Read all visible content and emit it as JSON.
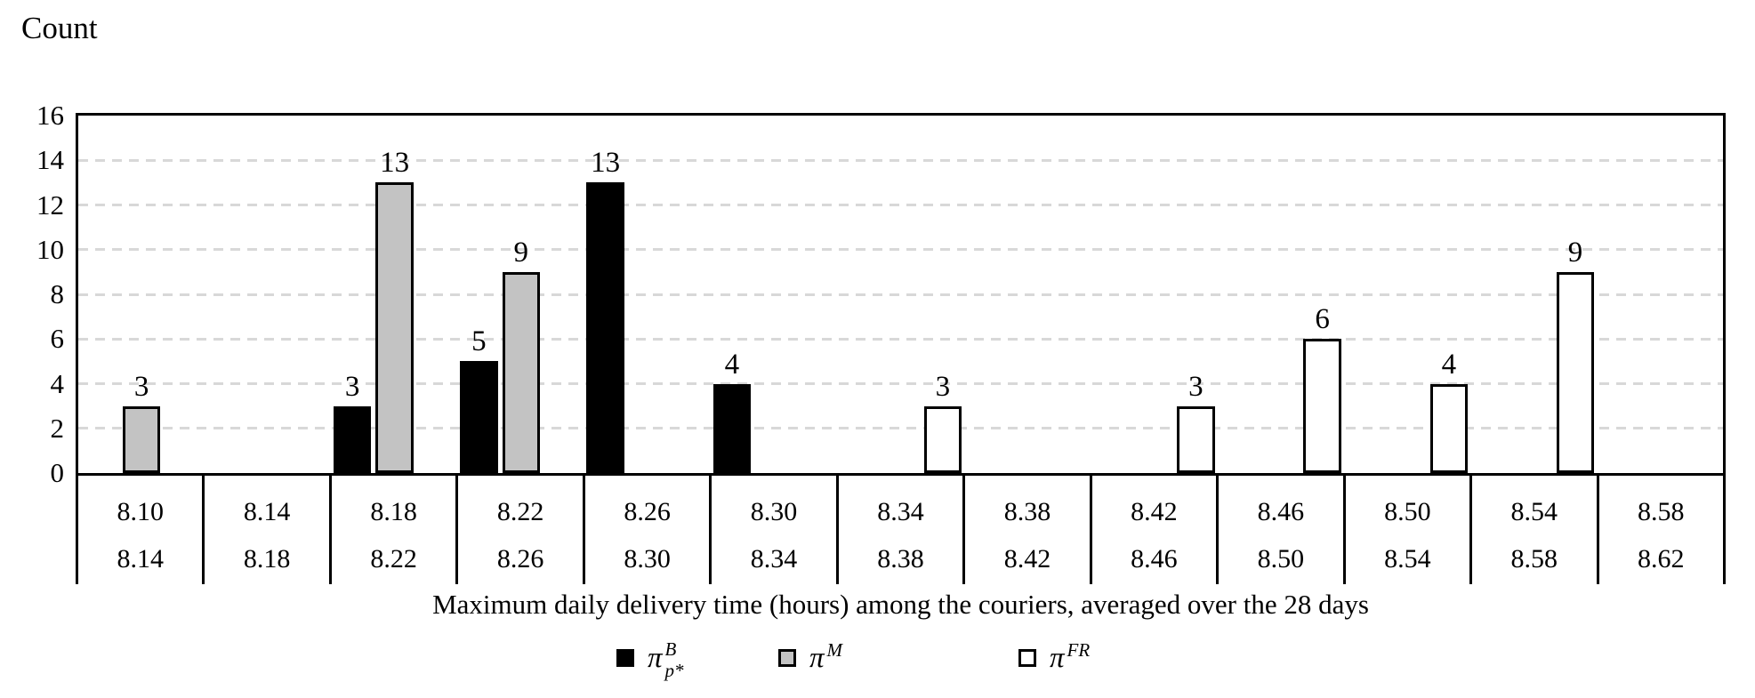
{
  "chart_data": {
    "type": "bar",
    "subtype": "clustered-histogram",
    "y_axis_title": "Count",
    "xlabel": "Maximum daily delivery time (hours) among the couriers, averaged over the 28 days",
    "ylim": [
      0,
      16
    ],
    "ytick_step": 2,
    "yticks": [
      "0",
      "2",
      "4",
      "6",
      "8",
      "10",
      "12",
      "14",
      "16"
    ],
    "grid": "horizontal-dashed-at-even-values",
    "legend_position": "bottom",
    "bins": [
      {
        "lower": "8.10",
        "upper": "8.14"
      },
      {
        "lower": "8.14",
        "upper": "8.18"
      },
      {
        "lower": "8.18",
        "upper": "8.22"
      },
      {
        "lower": "8.22",
        "upper": "8.26"
      },
      {
        "lower": "8.26",
        "upper": "8.30"
      },
      {
        "lower": "8.30",
        "upper": "8.34"
      },
      {
        "lower": "8.34",
        "upper": "8.38"
      },
      {
        "lower": "8.38",
        "upper": "8.42"
      },
      {
        "lower": "8.42",
        "upper": "8.46"
      },
      {
        "lower": "8.46",
        "upper": "8.50"
      },
      {
        "lower": "8.50",
        "upper": "8.54"
      },
      {
        "lower": "8.54",
        "upper": "8.58"
      },
      {
        "lower": "8.58",
        "upper": "8.62"
      }
    ],
    "series": [
      {
        "name": "pi-B-pstar",
        "legend_symbol": "π",
        "legend_sup": "B",
        "legend_sub": "p*",
        "fill": "#000000",
        "values": [
          null,
          null,
          3,
          5,
          13,
          4,
          null,
          null,
          null,
          null,
          null,
          null,
          null
        ]
      },
      {
        "name": "pi-M",
        "legend_symbol": "π",
        "legend_sup": "M",
        "legend_sub": "",
        "fill": "#c3c3c3",
        "values": [
          3,
          null,
          13,
          9,
          null,
          null,
          null,
          null,
          null,
          null,
          null,
          null,
          null
        ]
      },
      {
        "name": "pi-FR",
        "legend_symbol": "π",
        "legend_sup": "FR",
        "legend_sub": "",
        "fill": "#ffffff",
        "values": [
          null,
          null,
          null,
          null,
          null,
          null,
          3,
          null,
          3,
          6,
          4,
          9,
          null
        ]
      }
    ],
    "colors": {
      "bar_border": "#000000",
      "gridline": "#d8d8d8",
      "axis": "#000000",
      "text": "#000000",
      "background": "#ffffff"
    }
  }
}
